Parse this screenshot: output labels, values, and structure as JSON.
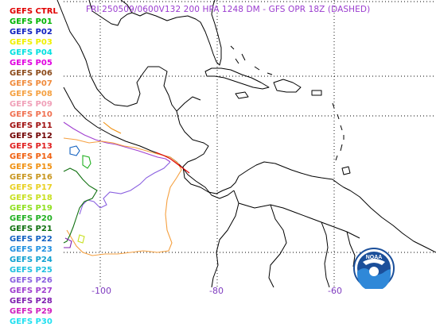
{
  "title": "FRI 250509/0600V132  200 HPA 1248 DM - GFS OPR 18Z (DASHED)",
  "legend": [
    {
      "label": "GEFS CTRL",
      "color": "#e00000"
    },
    {
      "label": "GEFS P01",
      "color": "#00b400"
    },
    {
      "label": "GEFS P02",
      "color": "#1020c0"
    },
    {
      "label": "GEFS P03",
      "color": "#f0f000"
    },
    {
      "label": "GEFS P04",
      "color": "#00e0e0"
    },
    {
      "label": "GEFS P05",
      "color": "#e000e0"
    },
    {
      "label": "GEFS P06",
      "color": "#8b4a1a"
    },
    {
      "label": "GEFS P07",
      "color": "#f08a3a"
    },
    {
      "label": "GEFS P08",
      "color": "#f5a040"
    },
    {
      "label": "GEFS P09",
      "color": "#f0a0b8"
    },
    {
      "label": "GEFS P10",
      "color": "#f07050"
    },
    {
      "label": "GEFS P11",
      "color": "#a01010"
    },
    {
      "label": "GEFS P12",
      "color": "#700000"
    },
    {
      "label": "GEFS P13",
      "color": "#e02020"
    },
    {
      "label": "GEFS P14",
      "color": "#f06010"
    },
    {
      "label": "GEFS P15",
      "color": "#f09010"
    },
    {
      "label": "GEFS P16",
      "color": "#c8961e"
    },
    {
      "label": "GEFS P17",
      "color": "#e8d020"
    },
    {
      "label": "GEFS P18",
      "color": "#c8e020"
    },
    {
      "label": "GEFS P19",
      "color": "#90e020"
    },
    {
      "label": "GEFS P20",
      "color": "#20b020"
    },
    {
      "label": "GEFS P21",
      "color": "#107010"
    },
    {
      "label": "GEFS P22",
      "color": "#1060c0"
    },
    {
      "label": "GEFS P23",
      "color": "#2090e0"
    },
    {
      "label": "GEFS P24",
      "color": "#10a0d0"
    },
    {
      "label": "GEFS P25",
      "color": "#20c0e0"
    },
    {
      "label": "GEFS P26",
      "color": "#8a60e0"
    },
    {
      "label": "GEFS P27",
      "color": "#a040d0"
    },
    {
      "label": "GEFS P28",
      "color": "#8020b0"
    },
    {
      "label": "GEFS P29",
      "color": "#d020c0"
    },
    {
      "label": "GEFS P30",
      "color": "#20e0f0"
    }
  ],
  "longitude_labels": [
    {
      "label": "-100"
    },
    {
      "label": "-80"
    },
    {
      "label": "-60"
    }
  ],
  "logo": {
    "text": "NOAA"
  },
  "colors": {
    "title": "#9a3ccf",
    "axis_labels": "#7e3bbf",
    "coastline": "#000000",
    "gridlines": "#000000"
  }
}
